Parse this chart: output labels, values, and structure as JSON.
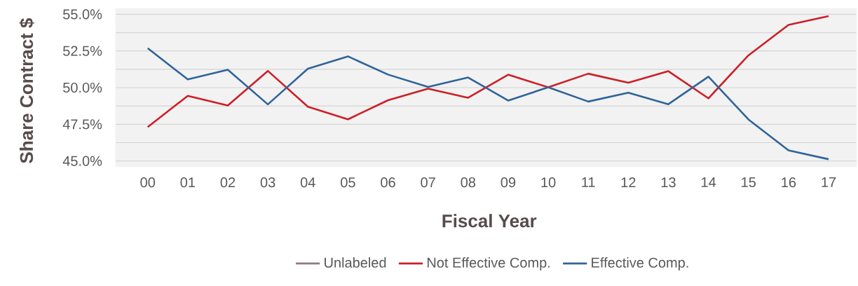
{
  "chart_data": {
    "type": "line",
    "xlabel": "Fiscal Year",
    "ylabel": "Share Contract $",
    "categories": [
      "00",
      "01",
      "02",
      "03",
      "04",
      "05",
      "06",
      "07",
      "08",
      "09",
      "10",
      "11",
      "12",
      "13",
      "14",
      "15",
      "16",
      "17"
    ],
    "series": [
      {
        "name": "Unlabeled",
        "color": "#8c7b7d",
        "values": [
          null,
          null,
          null,
          null,
          null,
          null,
          null,
          null,
          null,
          null,
          null,
          null,
          null,
          null,
          null,
          null,
          null,
          null
        ]
      },
      {
        "name": "Not Effective Comp.",
        "color": "#cc1f27",
        "values": [
          47.31,
          49.44,
          48.78,
          51.14,
          48.7,
          47.84,
          49.14,
          49.93,
          49.31,
          50.88,
          50.02,
          50.95,
          50.33,
          51.12,
          49.27,
          52.2,
          54.28,
          54.87
        ]
      },
      {
        "name": "Effective Comp.",
        "color": "#2f6499",
        "values": [
          52.69,
          50.56,
          51.22,
          48.86,
          51.29,
          52.13,
          50.89,
          50.05,
          50.69,
          49.12,
          50.02,
          49.05,
          49.65,
          48.87,
          50.75,
          47.83,
          45.72,
          45.12
        ]
      }
    ],
    "ylim": [
      44.6,
      55.4
    ],
    "yticks": [
      {
        "value": 45,
        "label": "45.0%"
      },
      {
        "value": 46.25,
        "label": null
      },
      {
        "value": 47.5,
        "label": "47.5%"
      },
      {
        "value": 48.75,
        "label": null
      },
      {
        "value": 50,
        "label": "50.0%"
      },
      {
        "value": 51.25,
        "label": null
      },
      {
        "value": 52.5,
        "label": "52.5%"
      },
      {
        "value": 53.75,
        "label": null
      },
      {
        "value": 55,
        "label": "55.0%"
      }
    ],
    "grid": "y",
    "legend": "bottom",
    "marker": "none",
    "line_style": "solid"
  }
}
